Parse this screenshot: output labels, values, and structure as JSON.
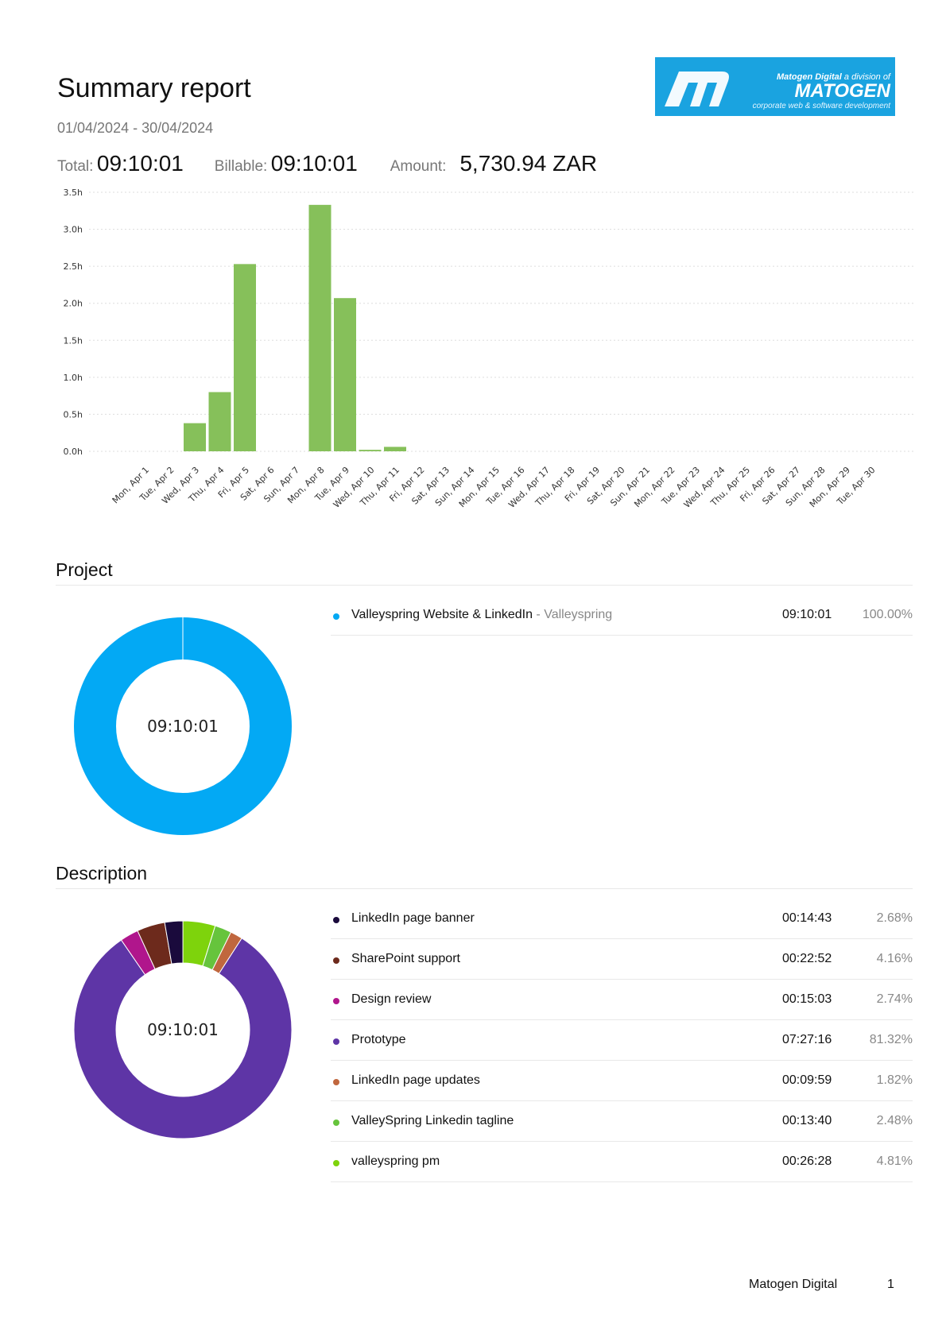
{
  "header": {
    "title": "Summary report",
    "date_range": "01/04/2024 - 30/04/2024",
    "logo": {
      "line1_bold": "Matogen Digital",
      "line1_rest": " a division of",
      "wordmark": "MATOGEN",
      "tagline": "corporate web & software development"
    }
  },
  "totals": {
    "total_label": "Total:",
    "total_value": "09:10:01",
    "billable_label": "Billable:",
    "billable_value": "09:10:01",
    "amount_label": "Amount:",
    "amount_value": "5,730.94 ZAR"
  },
  "chart_data": {
    "type": "bar",
    "title": "",
    "xlabel": "",
    "ylabel": "",
    "ylim": [
      0,
      3.5
    ],
    "y_ticks": [
      "0.0h",
      "0.5h",
      "1.0h",
      "1.5h",
      "2.0h",
      "2.5h",
      "3.0h",
      "3.5h"
    ],
    "grid": true,
    "color": "#86c05a",
    "categories": [
      "Mon, Apr 1",
      "Tue, Apr 2",
      "Wed, Apr 3",
      "Thu, Apr 4",
      "Fri, Apr 5",
      "Sat, Apr 6",
      "Sun, Apr 7",
      "Mon, Apr 8",
      "Tue, Apr 9",
      "Wed, Apr 10",
      "Thu, Apr 11",
      "Fri, Apr 12",
      "Sat, Apr 13",
      "Sun, Apr 14",
      "Mon, Apr 15",
      "Tue, Apr 16",
      "Wed, Apr 17",
      "Thu, Apr 18",
      "Fri, Apr 19",
      "Sat, Apr 20",
      "Sun, Apr 21",
      "Mon, Apr 22",
      "Tue, Apr 23",
      "Wed, Apr 24",
      "Thu, Apr 25",
      "Fri, Apr 26",
      "Sat, Apr 27",
      "Sun, Apr 28",
      "Mon, Apr 29",
      "Tue, Apr 30"
    ],
    "values": [
      0,
      0,
      0.38,
      0.8,
      2.53,
      0,
      0,
      3.33,
      2.07,
      0.02,
      0.06,
      0,
      0,
      0,
      0,
      0,
      0,
      0,
      0,
      0,
      0,
      0,
      0,
      0,
      0,
      0,
      0,
      0,
      0,
      0
    ]
  },
  "project": {
    "title": "Project",
    "center_label": "09:10:01",
    "items": [
      {
        "name": "Valleyspring Website & LinkedIn",
        "client": " - Valleyspring",
        "duration": "09:10:01",
        "percent": "100.00%",
        "share": 100.0,
        "color": "#03a9f4"
      }
    ]
  },
  "description": {
    "title": "Description",
    "center_label": "09:10:01",
    "items": [
      {
        "name": "LinkedIn page banner",
        "duration": "00:14:43",
        "percent": "2.68%",
        "share": 2.68,
        "color": "#1a0a3c"
      },
      {
        "name": "SharePoint support",
        "duration": "00:22:52",
        "percent": "4.16%",
        "share": 4.16,
        "color": "#6d2a1c"
      },
      {
        "name": "Design review",
        "duration": "00:15:03",
        "percent": "2.74%",
        "share": 2.74,
        "color": "#b0168c"
      },
      {
        "name": "Prototype",
        "duration": "07:27:16",
        "percent": "81.32%",
        "share": 81.32,
        "color": "#5e35a6"
      },
      {
        "name": "LinkedIn page updates",
        "duration": "00:09:59",
        "percent": "1.82%",
        "share": 1.82,
        "color": "#c0673e"
      },
      {
        "name": "ValleySpring Linkedin tagline",
        "duration": "00:13:40",
        "percent": "2.48%",
        "share": 2.48,
        "color": "#66c43c"
      },
      {
        "name": "valleyspring pm",
        "duration": "00:26:28",
        "percent": "4.81%",
        "share": 4.81,
        "color": "#7ed30c"
      }
    ]
  },
  "footer": {
    "company": "Matogen Digital",
    "page": "1"
  }
}
